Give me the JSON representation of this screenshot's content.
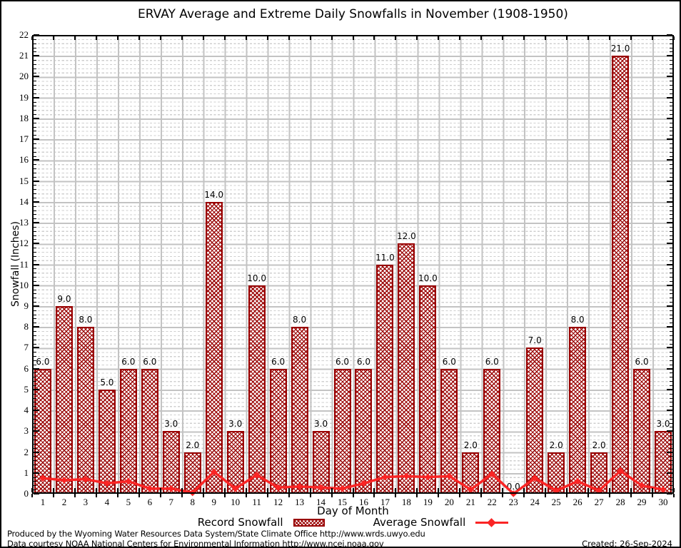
{
  "title": "ERVAY Average and Extreme Daily Snowfalls in November (1908-1950)",
  "chart_data": {
    "type": "bar",
    "categories": [
      1,
      2,
      3,
      4,
      5,
      6,
      7,
      8,
      9,
      10,
      11,
      12,
      13,
      14,
      15,
      16,
      17,
      18,
      19,
      20,
      21,
      22,
      23,
      24,
      25,
      26,
      27,
      28,
      29,
      30
    ],
    "series": [
      {
        "name": "Record Snowfall",
        "type": "bar",
        "values": [
          6,
          9,
          8,
          5,
          6,
          6,
          3,
          2,
          14,
          3,
          10,
          6,
          8,
          3,
          6,
          6,
          11,
          12,
          10,
          6,
          2,
          6,
          0,
          7,
          2,
          8,
          2,
          21,
          6,
          3
        ]
      },
      {
        "name": "Average Snowfall",
        "type": "line",
        "values": [
          0.75,
          0.65,
          0.7,
          0.5,
          0.6,
          0.25,
          0.25,
          0.05,
          1.05,
          0.25,
          0.9,
          0.3,
          0.35,
          0.3,
          0.25,
          0.5,
          0.8,
          0.85,
          0.8,
          0.85,
          0.2,
          0.95,
          0.0,
          0.75,
          0.15,
          0.6,
          0.15,
          1.1,
          0.4,
          0.2
        ]
      }
    ],
    "title": "ERVAY Average and Extreme Daily Snowfalls in November (1908-1950)",
    "xlabel": "Day of Month",
    "ylabel": "Snowfall (Inches)",
    "ylim": [
      0,
      22
    ],
    "ytick_step": 1,
    "ytick_minor_step": 0.2,
    "bar_label_decimals": 1,
    "grid": true,
    "legend_position": "bottom"
  },
  "legend": {
    "record_label": "Record Snowfall",
    "average_label": "Average Snowfall"
  },
  "footer": {
    "line1": "Produced by the Wyoming Water Resources Data System/State Climate Office http://www.wrds.uwyo.edu",
    "line2": "Data courtesy NOAA National Centers for Environmental Information http://www.ncei.noaa.gov",
    "created": "Created: 26-Sep-2024"
  },
  "colors": {
    "bar_border": "#990000",
    "bar_hatch": "#990000",
    "average_line": "#fa2525",
    "grid_major": "#c3c3c3",
    "grid_minor": "#cfcfcf",
    "axis": "#000000"
  }
}
